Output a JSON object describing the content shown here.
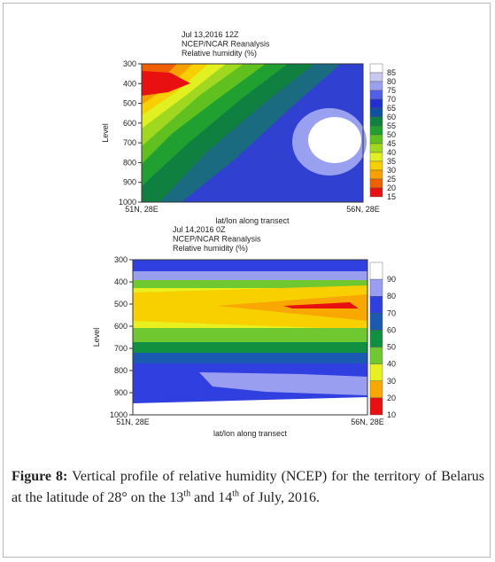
{
  "figure": {
    "panels": [
      {
        "title_lines": [
          "Jul 13,2016 12Z",
          "NCEP/NCAR Reanalysis",
          "Relative humidity (%)"
        ],
        "y_label": "Level",
        "y_ticks": [
          300,
          400,
          500,
          600,
          700,
          800,
          900,
          1000
        ],
        "x_ticks": [
          "51N, 28E",
          "56N, 28E"
        ],
        "x_label": "lat/lon along transect",
        "colorbar_labels": [
          85,
          80,
          75,
          70,
          65,
          60,
          55,
          50,
          45,
          40,
          35,
          30,
          25,
          20,
          15
        ]
      },
      {
        "title_lines": [
          "Jul 14,2016 0Z",
          "NCEP/NCAR Reanalysis",
          "Relative humidity (%)"
        ],
        "y_label": "Level",
        "y_ticks": [
          300,
          400,
          500,
          600,
          700,
          800,
          900,
          1000
        ],
        "x_ticks": [
          "51N, 28E",
          "56N, 28E"
        ],
        "x_label": "lat/lon along transect",
        "colorbar_labels": [
          90,
          80,
          70,
          60,
          50,
          40,
          30,
          20,
          10
        ]
      }
    ],
    "caption": {
      "label": "Figure 8:",
      "text": " Vertical profile of relative humidity (NCEP) for the territory of Belarus at the latitude of 28° on the 13",
      "sup1": "th",
      "mid": " and 14",
      "sup2": "th",
      "end": " of July, 2016."
    }
  }
}
